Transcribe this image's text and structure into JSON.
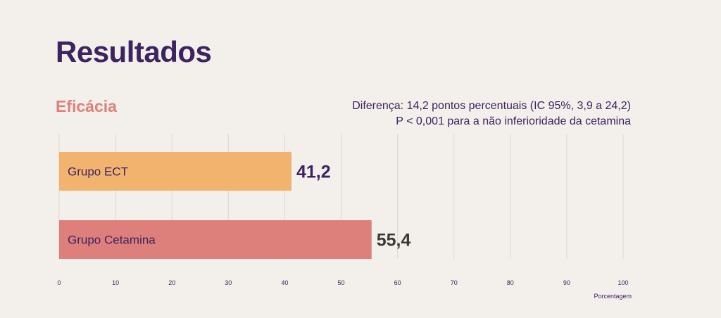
{
  "page": {
    "title": "Resultados",
    "section": "Eficácia",
    "note_line1": "Diferença: 14,2 pontos percentuais (IC 95%, 3,9 a 24,2)",
    "note_line2": "P < 0,001 para a não inferioridade da cetamina"
  },
  "colors": {
    "ect": "#f2b36f",
    "cetamina": "#dd7f7b",
    "title": "#3d2360",
    "section": "#e0807a",
    "value_ect": "#3d2360",
    "value_cetamina": "#3a3a3a",
    "grid": "#dcd7d2"
  },
  "chart_data": {
    "type": "bar",
    "orientation": "horizontal",
    "categories": [
      "Grupo ECT",
      "Grupo Cetamina"
    ],
    "values": [
      41.2,
      55.4
    ],
    "value_labels": [
      "41,2",
      "55,4"
    ],
    "xlabel": "Porcentagem",
    "xlim": [
      0,
      100
    ],
    "xticks": [
      0,
      10,
      20,
      30,
      40,
      50,
      60,
      70,
      80,
      90,
      100
    ],
    "grid": true
  }
}
